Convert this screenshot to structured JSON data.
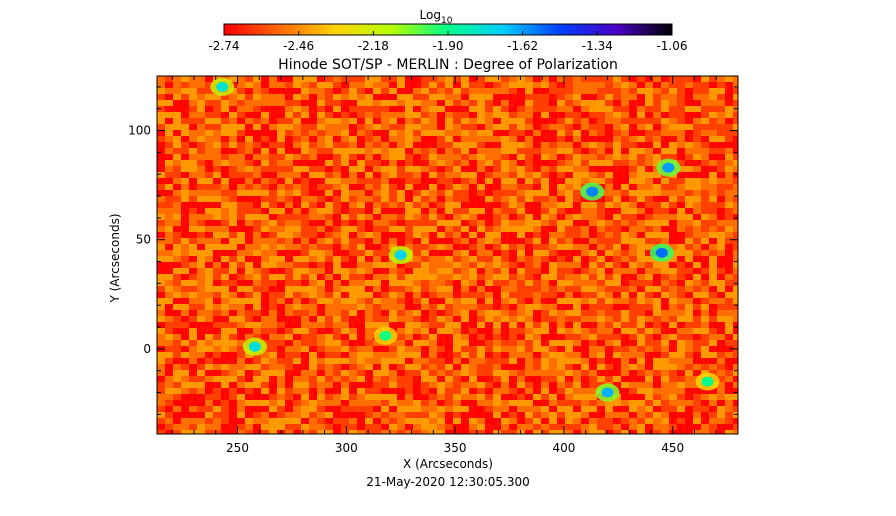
{
  "chart_data": {
    "type": "heatmap",
    "title": "Hinode SOT/SP - MERLIN : Degree of Polarization",
    "xlabel": "X (Arcseconds)",
    "ylabel": "Y (Arcseconds)",
    "date_label": "21-May-2020 12:30:05.300",
    "xlim": [
      213,
      480
    ],
    "ylim": [
      -39,
      125
    ],
    "x_ticks": [
      250,
      300,
      350,
      400,
      450
    ],
    "y_ticks": [
      0,
      50,
      100
    ],
    "colorbar": {
      "label": "Log",
      "label_sub": "10",
      "range": [
        -2.74,
        -1.06
      ],
      "ticks": [
        "-2.74",
        "-2.46",
        "-2.18",
        "-1.90",
        "-1.62",
        "-1.34",
        "-1.06"
      ],
      "colors": [
        "#ff0000",
        "#ff6a00",
        "#ffd400",
        "#b4ff00",
        "#00ff8c",
        "#00ccff",
        "#0040ff",
        "#4a00c8",
        "#000000"
      ]
    },
    "background_levels": [
      -2.74,
      -2.62,
      -2.52,
      -2.43
    ],
    "features": [
      {
        "x": 420,
        "y": -20,
        "level": -1.65
      },
      {
        "x": 325,
        "y": 43,
        "level": -1.72
      },
      {
        "x": 445,
        "y": 44,
        "level": -1.55
      },
      {
        "x": 448,
        "y": 83,
        "level": -1.62
      },
      {
        "x": 413,
        "y": 72,
        "level": -1.58
      },
      {
        "x": 243,
        "y": 120,
        "level": -1.78
      },
      {
        "x": 318,
        "y": 6,
        "level": -1.92
      },
      {
        "x": 258,
        "y": 1,
        "level": -1.75
      },
      {
        "x": 466,
        "y": -15,
        "level": -1.9
      }
    ]
  }
}
